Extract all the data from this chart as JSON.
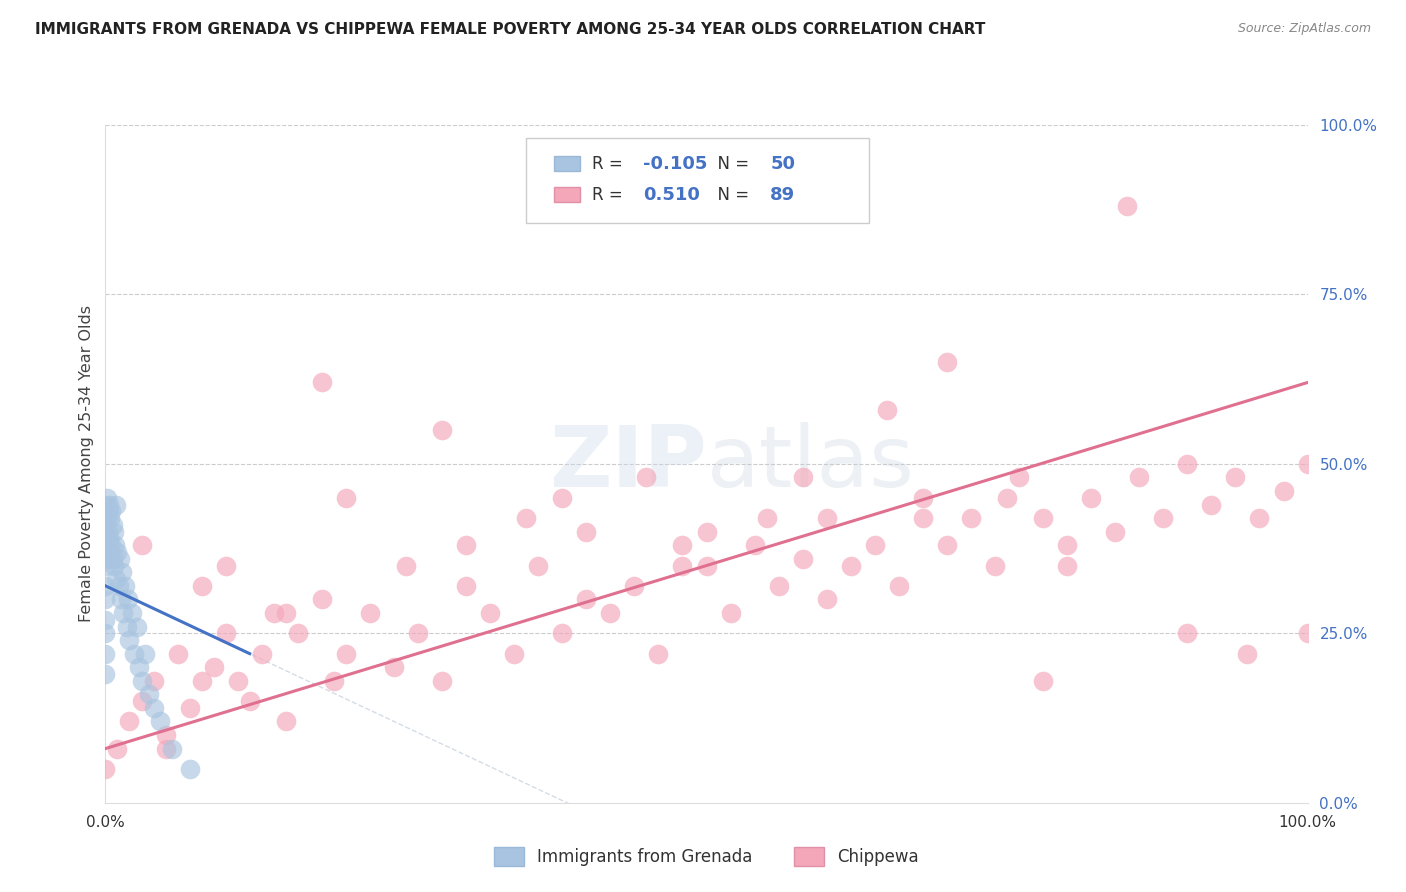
{
  "title": "IMMIGRANTS FROM GRENADA VS CHIPPEWA FEMALE POVERTY AMONG 25-34 YEAR OLDS CORRELATION CHART",
  "source": "Source: ZipAtlas.com",
  "ylabel": "Female Poverty Among 25-34 Year Olds",
  "xlim": [
    0,
    1.0
  ],
  "ylim": [
    0,
    1.0
  ],
  "legend1_label": "Immigrants from Grenada",
  "legend2_label": "Chippewa",
  "R1": -0.105,
  "N1": 50,
  "R2": 0.51,
  "N2": 89,
  "color_grenada": "#a8c4e0",
  "color_chippewa": "#f4a7b9",
  "color_line_grenada": "#4472c4",
  "color_line_chippewa": "#e07090",
  "background_color": "#ffffff",
  "grenada_line_x0": 0.0,
  "grenada_line_x1": 0.12,
  "grenada_line_y0": 0.32,
  "grenada_line_y1": 0.22,
  "chippewa_line_x0": 0.0,
  "chippewa_line_x1": 1.0,
  "chippewa_line_y0": 0.08,
  "chippewa_line_y1": 0.62,
  "scatter_grenada_x": [
    0.0,
    0.0,
    0.0,
    0.0,
    0.0,
    0.0,
    0.0,
    0.0,
    0.0,
    0.0,
    0.001,
    0.001,
    0.001,
    0.002,
    0.002,
    0.002,
    0.003,
    0.003,
    0.004,
    0.004,
    0.005,
    0.005,
    0.006,
    0.006,
    0.007,
    0.007,
    0.008,
    0.009,
    0.009,
    0.01,
    0.011,
    0.012,
    0.013,
    0.014,
    0.015,
    0.016,
    0.018,
    0.019,
    0.02,
    0.022,
    0.024,
    0.026,
    0.028,
    0.03,
    0.033,
    0.036,
    0.04,
    0.045,
    0.055,
    0.07
  ],
  "scatter_grenada_y": [
    0.44,
    0.41,
    0.38,
    0.35,
    0.32,
    0.3,
    0.27,
    0.25,
    0.22,
    0.19,
    0.45,
    0.42,
    0.38,
    0.43,
    0.4,
    0.36,
    0.44,
    0.39,
    0.42,
    0.37,
    0.43,
    0.38,
    0.41,
    0.36,
    0.4,
    0.35,
    0.38,
    0.44,
    0.33,
    0.37,
    0.32,
    0.36,
    0.3,
    0.34,
    0.28,
    0.32,
    0.26,
    0.3,
    0.24,
    0.28,
    0.22,
    0.26,
    0.2,
    0.18,
    0.22,
    0.16,
    0.14,
    0.12,
    0.08,
    0.05
  ],
  "scatter_chippewa_x": [
    0.0,
    0.01,
    0.02,
    0.03,
    0.04,
    0.05,
    0.06,
    0.07,
    0.08,
    0.09,
    0.1,
    0.11,
    0.12,
    0.13,
    0.14,
    0.15,
    0.16,
    0.18,
    0.19,
    0.2,
    0.22,
    0.24,
    0.26,
    0.28,
    0.3,
    0.32,
    0.34,
    0.36,
    0.38,
    0.4,
    0.42,
    0.44,
    0.46,
    0.48,
    0.5,
    0.52,
    0.54,
    0.56,
    0.58,
    0.6,
    0.62,
    0.64,
    0.66,
    0.68,
    0.7,
    0.72,
    0.74,
    0.76,
    0.78,
    0.8,
    0.82,
    0.84,
    0.86,
    0.88,
    0.9,
    0.92,
    0.94,
    0.96,
    0.98,
    1.0,
    0.05,
    0.1,
    0.15,
    0.2,
    0.25,
    0.3,
    0.35,
    0.4,
    0.45,
    0.5,
    0.55,
    0.6,
    0.65,
    0.7,
    0.75,
    0.8,
    0.85,
    0.9,
    0.95,
    1.0,
    0.03,
    0.08,
    0.18,
    0.28,
    0.38,
    0.48,
    0.58,
    0.68,
    0.78
  ],
  "scatter_chippewa_y": [
    0.05,
    0.08,
    0.12,
    0.15,
    0.18,
    0.08,
    0.22,
    0.14,
    0.18,
    0.2,
    0.25,
    0.18,
    0.15,
    0.22,
    0.28,
    0.12,
    0.25,
    0.3,
    0.18,
    0.22,
    0.28,
    0.2,
    0.25,
    0.18,
    0.32,
    0.28,
    0.22,
    0.35,
    0.25,
    0.4,
    0.28,
    0.32,
    0.22,
    0.35,
    0.4,
    0.28,
    0.38,
    0.32,
    0.36,
    0.42,
    0.35,
    0.38,
    0.32,
    0.45,
    0.38,
    0.42,
    0.35,
    0.48,
    0.42,
    0.38,
    0.45,
    0.4,
    0.48,
    0.42,
    0.5,
    0.44,
    0.48,
    0.42,
    0.46,
    0.5,
    0.1,
    0.35,
    0.28,
    0.45,
    0.35,
    0.38,
    0.42,
    0.3,
    0.48,
    0.35,
    0.42,
    0.3,
    0.58,
    0.65,
    0.45,
    0.35,
    0.88,
    0.25,
    0.22,
    0.25,
    0.38,
    0.32,
    0.62,
    0.55,
    0.45,
    0.38,
    0.48,
    0.42,
    0.18
  ]
}
